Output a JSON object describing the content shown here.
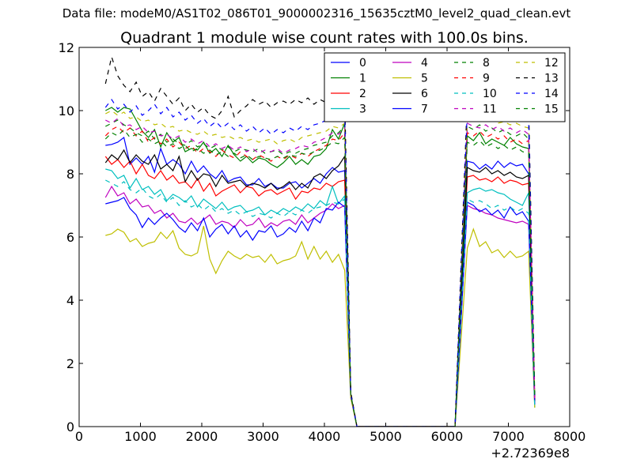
{
  "figure": {
    "supertitle": "Data file: modeM0/AS1T02_086T01_9000002316_15635cztM0_level2_quad_clean.evt"
  },
  "chart_data": {
    "type": "line",
    "title": "Quadrant 1 module wise count rates with 100.0s bins.",
    "xlabel": "",
    "ylabel": "",
    "x_offset_label": "+2.72369e8",
    "xlim": [
      0,
      8000
    ],
    "ylim": [
      0,
      12
    ],
    "xticks": [
      0,
      1000,
      2000,
      3000,
      4000,
      5000,
      6000,
      7000,
      8000
    ],
    "yticks": [
      0,
      2,
      4,
      6,
      8,
      10,
      12
    ],
    "grid": false,
    "legend_position": "top-right",
    "legend_columns": 4,
    "x": [
      430,
      530,
      630,
      730,
      830,
      930,
      1030,
      1130,
      1230,
      1330,
      1430,
      1530,
      1630,
      1730,
      1830,
      1930,
      2030,
      2130,
      2230,
      2330,
      2430,
      2530,
      2630,
      2730,
      2830,
      2930,
      3030,
      3130,
      3230,
      3330,
      3430,
      3530,
      3630,
      3730,
      3830,
      3930,
      4030,
      4130,
      4230,
      4330,
      4430,
      4530,
      4630,
      6130,
      6230,
      6330,
      6430,
      6530,
      6630,
      6730,
      6830,
      6930,
      7030,
      7130,
      7230,
      7330,
      7430
    ],
    "series": [
      {
        "name": "0",
        "color": "#0000ff",
        "dash": "solid",
        "values": [
          8.9,
          8.93,
          9.0,
          9.15,
          8.3,
          8.5,
          8.3,
          8.55,
          8.05,
          8.8,
          8.3,
          8.45,
          8.3,
          8.0,
          8.4,
          8.05,
          8.25,
          8.0,
          7.85,
          8.1,
          7.75,
          7.85,
          7.9,
          7.65,
          7.65,
          7.85,
          7.6,
          7.7,
          7.55,
          7.55,
          7.7,
          7.75,
          7.55,
          7.7,
          7.85,
          7.7,
          8.0,
          8.2,
          8.05,
          8.1,
          1.0,
          0.0,
          0.0,
          0.0,
          4.2,
          8.4,
          8.35,
          8.15,
          8.3,
          8.15,
          8.4,
          8.2,
          8.35,
          8.25,
          8.3,
          8.0,
          0.8
        ]
      },
      {
        "name": "1",
        "color": "#008000",
        "dash": "solid",
        "values": [
          10.0,
          10.1,
          9.95,
          10.1,
          10.05,
          9.7,
          9.35,
          9.15,
          9.4,
          8.85,
          9.3,
          9.0,
          9.15,
          8.7,
          8.8,
          8.75,
          9.0,
          8.65,
          8.8,
          8.55,
          8.9,
          8.6,
          8.4,
          8.55,
          8.35,
          8.5,
          8.45,
          8.3,
          8.2,
          8.35,
          8.55,
          8.3,
          8.45,
          8.3,
          8.55,
          8.6,
          8.8,
          9.4,
          9.1,
          9.6,
          1.0,
          0.0,
          0.0,
          0.0,
          4.5,
          9.2,
          9.05,
          9.3,
          8.95,
          9.1,
          9.0,
          8.9,
          9.15,
          8.95,
          8.85,
          8.8,
          0.8
        ]
      },
      {
        "name": "2",
        "color": "#ff0000",
        "dash": "solid",
        "values": [
          8.55,
          8.3,
          8.45,
          8.2,
          8.4,
          8.0,
          8.3,
          7.95,
          7.85,
          8.1,
          7.8,
          7.95,
          7.7,
          7.75,
          7.55,
          7.85,
          7.45,
          7.7,
          7.3,
          7.45,
          7.55,
          7.65,
          7.4,
          7.6,
          7.55,
          7.3,
          7.45,
          7.5,
          7.35,
          7.45,
          7.55,
          7.2,
          7.45,
          7.4,
          7.55,
          7.5,
          7.7,
          7.6,
          7.75,
          7.8,
          1.0,
          0.0,
          0.0,
          0.0,
          4.0,
          7.9,
          7.95,
          7.8,
          7.85,
          7.75,
          7.9,
          7.7,
          7.8,
          7.75,
          7.65,
          7.7,
          0.8
        ]
      },
      {
        "name": "3",
        "color": "#00bfbf",
        "dash": "solid",
        "values": [
          8.15,
          8.1,
          7.85,
          7.95,
          7.55,
          7.85,
          7.5,
          7.6,
          7.35,
          7.5,
          7.15,
          7.35,
          7.25,
          7.1,
          7.3,
          6.95,
          7.2,
          7.05,
          6.9,
          7.1,
          6.85,
          6.95,
          7.0,
          6.8,
          6.85,
          6.95,
          6.7,
          6.85,
          6.75,
          6.9,
          6.8,
          6.95,
          6.85,
          7.05,
          6.9,
          7.15,
          7.0,
          7.6,
          7.05,
          7.3,
          1.0,
          0.0,
          0.0,
          0.0,
          3.8,
          7.4,
          7.5,
          7.55,
          7.45,
          7.5,
          7.4,
          7.35,
          7.2,
          7.1,
          7.0,
          7.4,
          0.6
        ]
      },
      {
        "name": "4",
        "color": "#bf00bf",
        "dash": "solid",
        "values": [
          7.25,
          7.6,
          7.3,
          7.4,
          7.05,
          7.2,
          6.95,
          7.0,
          6.75,
          6.85,
          6.6,
          6.75,
          6.5,
          6.45,
          6.6,
          6.4,
          6.55,
          6.7,
          6.4,
          6.5,
          6.45,
          6.3,
          6.55,
          6.35,
          6.4,
          6.6,
          6.3,
          6.45,
          6.35,
          6.5,
          6.55,
          6.4,
          6.7,
          6.45,
          6.6,
          6.75,
          6.85,
          7.05,
          6.9,
          7.0,
          1.0,
          0.0,
          0.0,
          0.0,
          3.5,
          7.0,
          6.9,
          6.85,
          6.75,
          6.7,
          6.6,
          6.55,
          6.5,
          6.45,
          6.5,
          6.4,
          0.7
        ]
      },
      {
        "name": "5",
        "color": "#bfbf00",
        "dash": "solid",
        "values": [
          6.05,
          6.1,
          6.25,
          6.15,
          5.85,
          5.95,
          5.7,
          5.8,
          5.85,
          6.15,
          5.95,
          6.2,
          5.65,
          5.45,
          5.4,
          5.5,
          6.35,
          5.3,
          4.85,
          5.25,
          5.55,
          5.4,
          5.3,
          5.45,
          5.35,
          5.4,
          5.2,
          5.45,
          5.15,
          5.25,
          5.3,
          5.4,
          5.85,
          5.3,
          5.7,
          5.3,
          5.55,
          5.2,
          5.45,
          4.95,
          0.9,
          0.0,
          0.0,
          0.0,
          2.8,
          5.65,
          6.25,
          5.7,
          5.85,
          5.5,
          5.6,
          5.35,
          5.55,
          5.35,
          5.4,
          5.55,
          0.6
        ]
      },
      {
        "name": "6",
        "color": "#000000",
        "dash": "solid",
        "values": [
          8.35,
          8.6,
          8.45,
          8.75,
          8.35,
          8.6,
          8.4,
          8.3,
          8.6,
          8.15,
          8.3,
          8.1,
          8.55,
          7.75,
          8.1,
          7.8,
          8.0,
          7.95,
          7.6,
          7.95,
          7.7,
          7.75,
          7.8,
          7.6,
          7.7,
          7.65,
          7.55,
          7.7,
          7.5,
          7.6,
          7.75,
          7.5,
          7.7,
          7.55,
          7.9,
          8.0,
          7.85,
          8.1,
          8.25,
          8.55,
          1.0,
          0.0,
          0.0,
          0.0,
          4.1,
          8.2,
          8.1,
          8.05,
          8.2,
          8.0,
          8.1,
          7.95,
          8.05,
          7.9,
          7.85,
          7.95,
          0.8
        ]
      },
      {
        "name": "7",
        "color": "#0000ff",
        "dash": "solid",
        "values": [
          7.05,
          7.1,
          7.15,
          7.25,
          6.9,
          6.7,
          6.3,
          6.6,
          6.4,
          6.6,
          6.75,
          6.55,
          6.3,
          6.15,
          6.45,
          6.2,
          6.6,
          6.0,
          6.25,
          6.4,
          6.1,
          6.35,
          6.0,
          6.2,
          5.9,
          6.2,
          6.15,
          6.35,
          6.0,
          6.1,
          6.3,
          6.15,
          6.5,
          6.2,
          6.6,
          6.45,
          6.9,
          6.85,
          7.1,
          6.95,
          1.0,
          0.0,
          0.0,
          0.0,
          3.4,
          7.1,
          7.0,
          6.8,
          6.9,
          6.7,
          6.85,
          6.6,
          6.95,
          6.7,
          6.8,
          6.5,
          0.7
        ]
      },
      {
        "name": "8",
        "color": "#008000",
        "dash": "dashed",
        "values": [
          9.5,
          9.6,
          9.7,
          9.55,
          9.45,
          9.3,
          9.2,
          9.35,
          9.1,
          9.25,
          9.0,
          9.1,
          8.95,
          8.9,
          9.05,
          8.85,
          8.95,
          8.8,
          8.9,
          8.75,
          8.85,
          8.7,
          8.8,
          8.75,
          8.7,
          8.8,
          8.65,
          8.7,
          8.75,
          8.6,
          8.7,
          8.65,
          8.75,
          8.8,
          8.9,
          8.95,
          9.0,
          9.2,
          9.3,
          9.5,
          1.0,
          0.0,
          0.0,
          0.0,
          4.7,
          9.5,
          9.4,
          9.55,
          9.35,
          9.45,
          9.3,
          9.4,
          9.25,
          9.2,
          9.3,
          9.1,
          0.9
        ]
      },
      {
        "name": "9",
        "color": "#ff0000",
        "dash": "dashed",
        "values": [
          9.2,
          9.4,
          9.5,
          9.3,
          9.45,
          9.2,
          9.35,
          9.0,
          9.15,
          8.95,
          9.1,
          8.85,
          9.0,
          8.8,
          8.9,
          8.65,
          8.8,
          8.7,
          8.55,
          8.75,
          8.6,
          8.5,
          8.7,
          8.55,
          8.45,
          8.6,
          8.5,
          8.4,
          8.55,
          8.45,
          8.6,
          8.5,
          8.65,
          8.55,
          8.7,
          8.8,
          8.9,
          9.1,
          9.05,
          9.3,
          1.0,
          0.0,
          0.0,
          0.0,
          4.6,
          9.3,
          9.2,
          9.35,
          9.15,
          9.25,
          9.1,
          9.2,
          9.0,
          9.1,
          8.95,
          9.05,
          0.9
        ]
      },
      {
        "name": "10",
        "color": "#00bfbf",
        "dash": "dashed",
        "values": [
          7.8,
          7.7,
          7.6,
          7.75,
          7.5,
          7.4,
          7.55,
          7.3,
          7.2,
          7.35,
          7.1,
          7.25,
          7.0,
          7.15,
          6.95,
          7.05,
          6.85,
          7.0,
          6.8,
          6.9,
          6.75,
          6.85,
          6.7,
          6.8,
          6.65,
          6.75,
          6.7,
          6.6,
          6.75,
          6.65,
          6.8,
          6.7,
          6.85,
          6.75,
          6.9,
          6.95,
          7.0,
          7.1,
          7.05,
          7.2,
          1.0,
          0.0,
          0.0,
          0.0,
          3.6,
          7.2,
          7.1,
          7.15,
          7.05,
          6.9,
          7.0,
          6.85,
          6.95,
          6.8,
          6.9,
          6.75,
          0.6
        ]
      },
      {
        "name": "11",
        "color": "#bf00bf",
        "dash": "dashed",
        "values": [
          9.7,
          9.6,
          9.75,
          9.5,
          9.55,
          9.4,
          9.5,
          9.3,
          9.35,
          9.2,
          9.25,
          9.1,
          9.2,
          9.0,
          9.1,
          8.95,
          9.05,
          8.85,
          8.95,
          8.8,
          8.9,
          8.75,
          8.85,
          8.7,
          8.8,
          8.65,
          8.75,
          8.7,
          8.8,
          8.65,
          8.75,
          8.8,
          8.9,
          8.85,
          9.0,
          9.05,
          9.15,
          9.3,
          9.25,
          9.45,
          1.0,
          0.0,
          0.0,
          0.0,
          4.8,
          9.6,
          9.5,
          9.45,
          9.55,
          9.4,
          9.5,
          9.35,
          9.45,
          9.3,
          9.4,
          9.25,
          0.9
        ]
      },
      {
        "name": "12",
        "color": "#bfbf00",
        "dash": "dashed",
        "values": [
          9.9,
          10.0,
          9.85,
          9.95,
          9.75,
          9.8,
          9.65,
          9.7,
          9.55,
          9.6,
          9.45,
          9.5,
          9.35,
          9.4,
          9.3,
          9.25,
          9.35,
          9.2,
          9.25,
          9.15,
          9.2,
          9.1,
          9.15,
          9.05,
          9.1,
          9.0,
          9.05,
          9.1,
          8.95,
          9.05,
          9.1,
          9.0,
          9.15,
          9.2,
          9.25,
          9.3,
          9.35,
          9.5,
          9.45,
          9.6,
          1.0,
          0.0,
          0.0,
          0.0,
          4.9,
          9.8,
          9.7,
          9.75,
          9.65,
          9.7,
          9.6,
          9.65,
          9.55,
          9.6,
          9.5,
          9.45,
          0.9
        ]
      },
      {
        "name": "13",
        "color": "#000000",
        "dash": "dashed",
        "values": [
          10.85,
          11.7,
          11.1,
          10.8,
          10.6,
          10.9,
          10.45,
          10.6,
          10.3,
          10.7,
          10.45,
          10.2,
          10.4,
          10.0,
          10.2,
          9.95,
          10.1,
          9.85,
          9.75,
          10.0,
          10.45,
          9.8,
          10.0,
          10.15,
          10.35,
          10.2,
          10.3,
          10.1,
          10.25,
          10.3,
          10.2,
          10.35,
          10.25,
          10.4,
          10.2,
          10.35,
          10.25,
          10.45,
          10.3,
          10.5,
          1.1,
          0.0,
          0.0,
          0.0,
          5.2,
          10.4,
          10.55,
          10.2,
          10.45,
          10.25,
          10.5,
          10.3,
          10.4,
          10.2,
          10.35,
          10.15,
          1.0
        ]
      },
      {
        "name": "14",
        "color": "#0000ff",
        "dash": "dashed",
        "values": [
          10.1,
          10.35,
          10.05,
          10.2,
          9.95,
          10.15,
          9.85,
          10.0,
          10.2,
          9.9,
          10.1,
          9.8,
          9.95,
          9.7,
          9.85,
          9.6,
          9.75,
          9.5,
          9.65,
          9.45,
          9.6,
          9.4,
          9.55,
          9.35,
          9.5,
          9.3,
          9.45,
          9.25,
          9.4,
          9.3,
          9.45,
          9.35,
          9.5,
          9.4,
          9.55,
          9.6,
          9.7,
          9.85,
          9.75,
          9.95,
          1.0,
          0.0,
          0.0,
          0.0,
          5.0,
          10.0,
          9.9,
          10.05,
          9.85,
          9.95,
          9.8,
          9.9,
          9.75,
          9.85,
          9.7,
          9.65,
          0.9
        ]
      },
      {
        "name": "15",
        "color": "#008000",
        "dash": "dashed",
        "values": [
          9.1,
          9.3,
          9.2,
          9.4,
          9.15,
          9.25,
          9.0,
          9.1,
          8.95,
          9.05,
          8.85,
          8.95,
          8.8,
          8.9,
          8.7,
          8.8,
          8.65,
          8.75,
          8.6,
          8.7,
          8.55,
          8.65,
          8.5,
          8.6,
          8.45,
          8.55,
          8.5,
          8.45,
          8.55,
          8.5,
          8.6,
          8.55,
          8.65,
          8.6,
          8.7,
          8.75,
          8.85,
          9.0,
          8.95,
          9.15,
          1.0,
          0.0,
          0.0,
          0.0,
          4.5,
          9.0,
          8.9,
          9.05,
          8.85,
          8.95,
          8.8,
          8.9,
          8.75,
          8.85,
          8.7,
          8.65,
          0.9
        ]
      }
    ]
  }
}
